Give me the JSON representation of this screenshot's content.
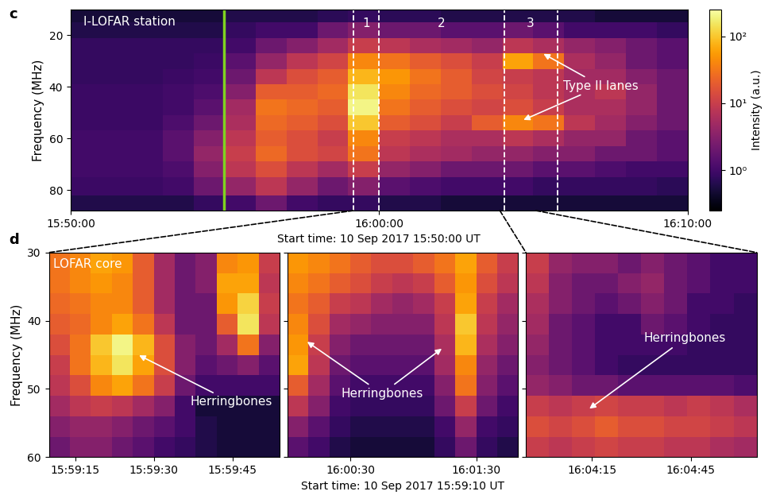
{
  "chart_data": [
    {
      "type": "heatmap",
      "panel": "c",
      "station": "I-LOFAR station",
      "x_label": "Start time: 10 Sep 2017 15:50:00 UT",
      "y_label": "Frequency (MHz)",
      "x": [
        30,
        90,
        150,
        210,
        270,
        330,
        390,
        450,
        510,
        570,
        630,
        690,
        750,
        810,
        870,
        930,
        990,
        1050,
        1110,
        1170
      ],
      "y": [
        12,
        18,
        24,
        30,
        36,
        42,
        48,
        54,
        60,
        66,
        72,
        78,
        86
      ],
      "cells": [
        [
          0.5,
          0.5,
          0.5,
          0.5,
          0.5,
          0.6,
          0.6,
          0.6,
          0.7,
          0.8,
          0.7,
          0.7,
          0.6,
          0.6,
          0.6,
          0.6,
          0.6,
          0.5,
          0.5,
          0.5
        ],
        [
          0.6,
          0.6,
          0.6,
          0.6,
          0.6,
          0.8,
          1,
          1,
          2,
          3,
          2,
          2,
          1.5,
          1.5,
          2,
          1.5,
          1,
          1,
          1,
          0.8
        ],
        [
          0.8,
          0.8,
          0.8,
          0.8,
          0.8,
          1,
          2,
          3,
          5,
          10,
          8,
          6,
          5,
          4,
          8,
          6,
          4,
          3,
          2,
          1.5
        ],
        [
          0.8,
          0.8,
          0.8,
          0.8,
          0.9,
          1.5,
          4,
          8,
          12,
          40,
          30,
          20,
          15,
          10,
          60,
          30,
          6,
          4,
          2,
          1.5
        ],
        [
          0.8,
          0.8,
          0.8,
          0.9,
          1,
          2,
          8,
          15,
          20,
          80,
          50,
          30,
          20,
          12,
          10,
          8,
          5,
          5,
          3,
          2
        ],
        [
          0.9,
          0.9,
          0.9,
          1,
          1.2,
          3,
          20,
          20,
          25,
          150,
          40,
          25,
          20,
          15,
          12,
          8,
          6,
          8,
          4,
          2
        ],
        [
          0.9,
          0.9,
          0.9,
          1,
          1.5,
          5,
          30,
          25,
          20,
          200,
          30,
          20,
          15,
          12,
          15,
          10,
          6,
          6,
          4,
          2
        ],
        [
          0.9,
          0.9,
          0.9,
          1.2,
          2,
          6,
          25,
          20,
          15,
          100,
          20,
          15,
          10,
          20,
          40,
          30,
          8,
          5,
          3,
          2
        ],
        [
          1,
          1,
          1,
          1.5,
          3,
          8,
          20,
          15,
          10,
          40,
          10,
          8,
          6,
          6,
          8,
          6,
          4,
          4,
          2,
          1.5
        ],
        [
          1,
          1,
          1,
          1.5,
          4,
          10,
          25,
          15,
          12,
          30,
          8,
          6,
          5,
          4,
          4,
          3,
          3,
          2,
          2,
          1.5
        ],
        [
          1,
          1,
          1,
          1.2,
          3,
          8,
          15,
          8,
          5,
          10,
          4,
          3,
          2,
          2,
          2,
          1.5,
          1.5,
          1.2,
          1,
          1
        ],
        [
          0.9,
          0.9,
          0.9,
          1,
          2,
          4,
          8,
          4,
          2,
          3,
          1.5,
          1.2,
          1,
          1,
          1,
          0.8,
          0.8,
          0.8,
          0.8,
          0.7
        ],
        [
          0.6,
          0.6,
          0.6,
          0.6,
          0.8,
          1,
          2,
          1,
          0.8,
          0.8,
          0.6,
          0.6,
          0.5,
          0.5,
          0.5,
          0.5,
          0.5,
          0.5,
          0.5,
          0.5
        ]
      ],
      "xlim": [
        0,
        1200
      ],
      "ylim": [
        88,
        10
      ],
      "xticks": [
        {
          "value": 0,
          "label": "15:50:00"
        },
        {
          "value": 600,
          "label": "16:00:00"
        },
        {
          "value": 1200,
          "label": "16:10:00"
        }
      ],
      "yticks": [
        20,
        40,
        60,
        80
      ],
      "colorbar": {
        "label": "Intensity (a.u.)",
        "range": [
          0.25,
          250
        ],
        "ticks": [
          {
            "value": 1,
            "label": "10⁰"
          },
          {
            "value": 10,
            "label": "10¹"
          },
          {
            "value": 100,
            "label": "10²"
          }
        ]
      },
      "marker_time": 298,
      "regions": [
        {
          "label": "1",
          "start": 550,
          "end": 600
        },
        {
          "label": "2",
          "start": 600,
          "end": 843
        },
        {
          "label": "3",
          "start": 843,
          "end": 947
        }
      ],
      "annotations": [
        {
          "text": "Type II lanes",
          "points": [
            [
              918,
              27
            ],
            [
              879,
              53
            ]
          ]
        }
      ]
    },
    {
      "type": "heatmap",
      "panel": "d",
      "station": "LOFAR core",
      "y_label": "Frequency (MHz)",
      "x": [
        552,
        556,
        560,
        564,
        568,
        572,
        576,
        580,
        584,
        588,
        592
      ],
      "y": [
        31.5,
        34.5,
        37.5,
        40.5,
        43.5,
        46.5,
        49.5,
        52.5,
        55.5,
        58.5
      ],
      "cells": [
        [
          30,
          40,
          60,
          50,
          20,
          5,
          2,
          3,
          40,
          50,
          10
        ],
        [
          30,
          40,
          50,
          40,
          20,
          5,
          2,
          3,
          60,
          60,
          8
        ],
        [
          25,
          30,
          40,
          40,
          20,
          5,
          2,
          2,
          50,
          120,
          10
        ],
        [
          20,
          25,
          40,
          60,
          30,
          8,
          2,
          2,
          20,
          150,
          8
        ],
        [
          15,
          30,
          100,
          200,
          80,
          15,
          3,
          2,
          5,
          30,
          3
        ],
        [
          10,
          30,
          80,
          150,
          60,
          15,
          3,
          1.5,
          2,
          3,
          1.5
        ],
        [
          8,
          15,
          40,
          60,
          30,
          10,
          2,
          1,
          1,
          1,
          1
        ],
        [
          5,
          8,
          10,
          8,
          5,
          3,
          1,
          0.5,
          0.5,
          0.5,
          0.5
        ],
        [
          3,
          4,
          4,
          3,
          2,
          1.5,
          1,
          0.6,
          0.5,
          0.5,
          0.5
        ],
        [
          2,
          3,
          3,
          2,
          1.5,
          1,
          0.8,
          0.6,
          0.5,
          0.5,
          0.5
        ]
      ],
      "xlim": [
        550,
        594
      ],
      "ylim": [
        60,
        30
      ],
      "xticks": [
        {
          "value": 555,
          "label": "15:59:15"
        },
        {
          "value": 570,
          "label": "15:59:30"
        },
        {
          "value": 585,
          "label": "15:59:45"
        }
      ],
      "yticks": [
        30,
        40,
        50,
        60
      ],
      "annotations": [
        {
          "text": "Herringbones",
          "points": [
            [
              567,
              45
            ]
          ]
        }
      ]
    },
    {
      "type": "heatmap",
      "x_label": "Start time: 10 Sep 2017 15:59:10 UT",
      "x": [
        605,
        615,
        625,
        635,
        645,
        655,
        665,
        675,
        685,
        695,
        705
      ],
      "y": [
        31.5,
        34.5,
        37.5,
        40.5,
        43.5,
        46.5,
        49.5,
        52.5,
        55.5,
        58.5
      ],
      "cells": [
        [
          50,
          40,
          30,
          20,
          15,
          15,
          20,
          30,
          60,
          20,
          10
        ],
        [
          40,
          30,
          20,
          15,
          10,
          8,
          10,
          20,
          50,
          15,
          8
        ],
        [
          30,
          20,
          10,
          8,
          5,
          4,
          5,
          10,
          60,
          10,
          5
        ],
        [
          40,
          15,
          5,
          4,
          3,
          3,
          3,
          8,
          100,
          8,
          4
        ],
        [
          50,
          10,
          3,
          2,
          2,
          2,
          2,
          6,
          80,
          6,
          3
        ],
        [
          60,
          8,
          2,
          1.5,
          1.5,
          1.5,
          1.5,
          5,
          40,
          4,
          2
        ],
        [
          20,
          5,
          1.5,
          1,
          1,
          1,
          1,
          3,
          30,
          3,
          1.5
        ],
        [
          8,
          3,
          1,
          0.8,
          0.8,
          0.8,
          0.8,
          2,
          10,
          2,
          1
        ],
        [
          3,
          1.5,
          0.8,
          0.6,
          0.6,
          0.6,
          0.6,
          1,
          4,
          1,
          0.8
        ],
        [
          1.5,
          1,
          0.6,
          0.5,
          0.5,
          0.5,
          0.5,
          0.8,
          2,
          0.8,
          0.6
        ]
      ],
      "xlim": [
        600,
        710
      ],
      "ylim": [
        60,
        30
      ],
      "xticks": [
        {
          "value": 630,
          "label": "16:00:30"
        },
        {
          "value": 690,
          "label": "16:01:30"
        }
      ],
      "yticks": [
        30,
        40,
        50,
        60
      ],
      "tick_labels": "x",
      "annotations": [
        {
          "text": "Herringbones",
          "points": [
            [
              609,
              43
            ],
            [
              674,
              44
            ]
          ]
        }
      ]
    },
    {
      "type": "heatmap",
      "x": [
        838.5,
        845.5,
        852.5,
        859.5,
        866.5,
        873.5,
        880.5,
        887.5,
        894.5,
        901.5
      ],
      "y": [
        31.5,
        34.5,
        37.5,
        40.5,
        43.5,
        46.5,
        49.5,
        52.5,
        55.5,
        58.5
      ],
      "cells": [
        [
          10,
          4,
          3,
          3,
          2,
          3,
          2,
          1.5,
          1,
          1
        ],
        [
          8,
          3,
          2,
          2,
          3,
          4,
          2,
          1.5,
          1,
          1
        ],
        [
          6,
          3,
          2,
          1.5,
          2,
          3,
          2,
          1,
          1,
          0.8
        ],
        [
          5,
          2,
          1.5,
          1,
          1,
          2,
          1.5,
          1,
          0.8,
          0.8
        ],
        [
          4,
          2,
          1.5,
          1,
          1,
          1,
          1,
          0.8,
          0.8,
          0.8
        ],
        [
          3,
          2,
          1.5,
          1,
          0.8,
          0.8,
          0.8,
          0.8,
          0.8,
          0.8
        ],
        [
          4,
          3,
          2,
          2,
          1.5,
          1.5,
          1.5,
          1.5,
          1.5,
          1.2
        ],
        [
          10,
          8,
          10,
          12,
          10,
          10,
          8,
          10,
          8,
          6
        ],
        [
          15,
          12,
          15,
          20,
          15,
          15,
          12,
          12,
          10,
          8
        ],
        [
          10,
          8,
          10,
          12,
          10,
          10,
          8,
          8,
          6,
          5
        ]
      ],
      "xlim": [
        835,
        905
      ],
      "ylim": [
        60,
        30
      ],
      "xticks": [
        {
          "value": 855,
          "label": "16:04:15"
        },
        {
          "value": 885,
          "label": "16:04:45"
        }
      ],
      "yticks": [
        30,
        40,
        50,
        60
      ],
      "tick_labels": "x",
      "annotations": [
        {
          "text": "Herringbones",
          "points": [
            [
              854,
              53
            ]
          ]
        }
      ]
    }
  ]
}
